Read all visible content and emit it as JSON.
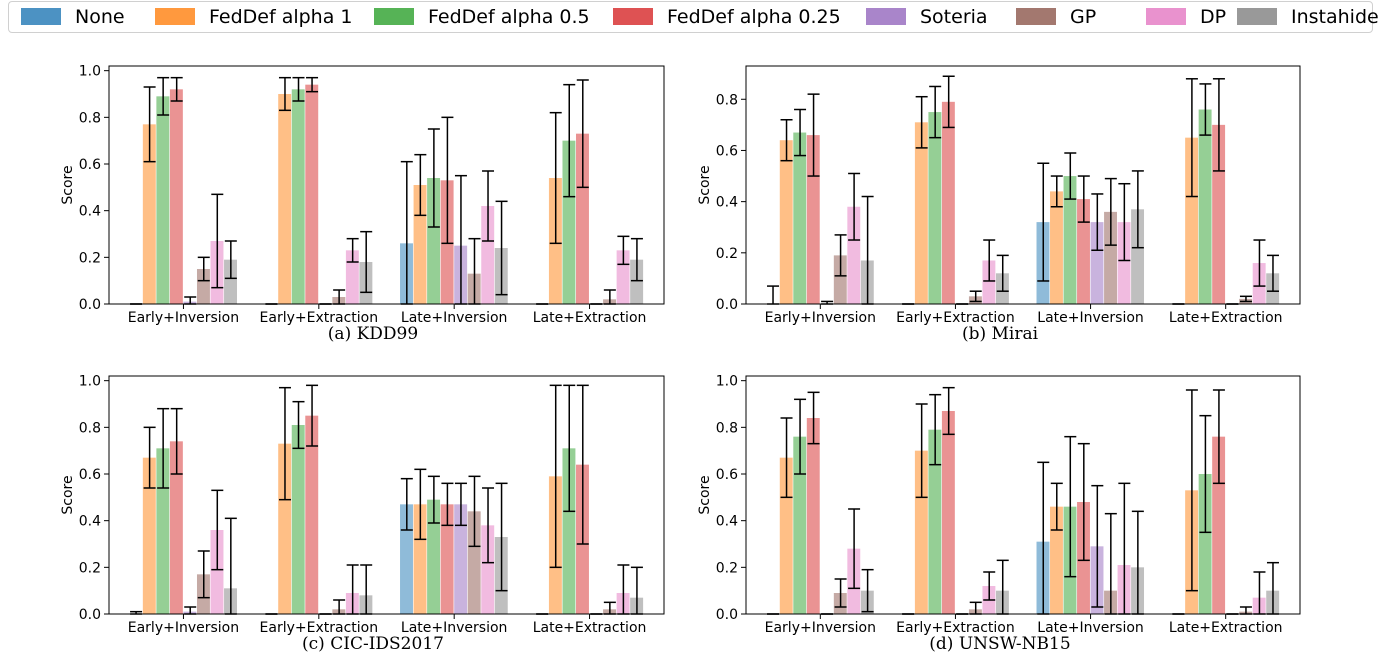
{
  "legend": [
    {
      "name": "None",
      "color": "#1f77b4"
    },
    {
      "name": "FedDef alpha 1",
      "color": "#ff7f0e"
    },
    {
      "name": "FedDef alpha 0.5",
      "color": "#2ca02c"
    },
    {
      "name": "FedDef alpha 0.25",
      "color": "#d62728"
    },
    {
      "name": "Soteria",
      "color": "#9467bd"
    },
    {
      "name": "GP",
      "color": "#8c564b"
    },
    {
      "name": "DP",
      "color": "#e377c2"
    },
    {
      "name": "Instahide",
      "color": "#7f7f7f"
    }
  ],
  "chart_data": [
    {
      "type": "bar",
      "caption": "(a) KDD99",
      "ylabel": "Score",
      "ylim": [
        0,
        1.02
      ],
      "yticks": [
        "0.0",
        "0.2",
        "0.4",
        "0.6",
        "0.8",
        "1.0"
      ],
      "categories": [
        "Early+Inversion",
        "Early+Extraction",
        "Late+Inversion",
        "Late+Extraction"
      ],
      "series": [
        {
          "name": "None",
          "values": [
            0.0,
            0.0,
            0.26,
            0.0
          ],
          "err": [
            0.0,
            0.0,
            0.35,
            0.0
          ]
        },
        {
          "name": "FedDef alpha 1",
          "values": [
            0.77,
            0.9,
            0.51,
            0.54
          ],
          "err": [
            0.16,
            0.07,
            0.13,
            0.28
          ]
        },
        {
          "name": "FedDef alpha 0.5",
          "values": [
            0.89,
            0.92,
            0.54,
            0.7
          ],
          "err": [
            0.08,
            0.05,
            0.21,
            0.24
          ]
        },
        {
          "name": "FedDef alpha 0.25",
          "values": [
            0.92,
            0.94,
            0.53,
            0.73
          ],
          "err": [
            0.05,
            0.03,
            0.27,
            0.23
          ]
        },
        {
          "name": "Soteria",
          "values": [
            0.01,
            0.0,
            0.25,
            0.0
          ],
          "err": [
            0.02,
            0.0,
            0.3,
            0.0
          ]
        },
        {
          "name": "GP",
          "values": [
            0.15,
            0.03,
            0.13,
            0.02
          ],
          "err": [
            0.05,
            0.03,
            0.15,
            0.04
          ]
        },
        {
          "name": "DP",
          "values": [
            0.27,
            0.23,
            0.42,
            0.23
          ],
          "err": [
            0.2,
            0.05,
            0.15,
            0.06
          ]
        },
        {
          "name": "Instahide",
          "values": [
            0.19,
            0.18,
            0.24,
            0.19
          ],
          "err": [
            0.08,
            0.13,
            0.2,
            0.09
          ]
        }
      ]
    },
    {
      "type": "bar",
      "caption": "(b) Mirai",
      "ylabel": "Score",
      "ylim": [
        0,
        0.93
      ],
      "yticks": [
        "0.0",
        "0.2",
        "0.4",
        "0.6",
        "0.8"
      ],
      "categories": [
        "Early+Inversion",
        "Early+Extraction",
        "Late+Inversion",
        "Late+Extraction"
      ],
      "series": [
        {
          "name": "None",
          "values": [
            0.0,
            0.0,
            0.32,
            0.0
          ],
          "err": [
            0.07,
            0.0,
            0.23,
            0.0
          ]
        },
        {
          "name": "FedDef alpha 1",
          "values": [
            0.64,
            0.71,
            0.44,
            0.65
          ],
          "err": [
            0.08,
            0.1,
            0.06,
            0.23
          ]
        },
        {
          "name": "FedDef alpha 0.5",
          "values": [
            0.67,
            0.75,
            0.5,
            0.76
          ],
          "err": [
            0.09,
            0.1,
            0.09,
            0.1
          ]
        },
        {
          "name": "FedDef alpha 0.25",
          "values": [
            0.66,
            0.79,
            0.41,
            0.7
          ],
          "err": [
            0.16,
            0.1,
            0.09,
            0.18
          ]
        },
        {
          "name": "Soteria",
          "values": [
            0.0,
            0.0,
            0.32,
            0.0
          ],
          "err": [
            0.01,
            0.0,
            0.11,
            0.0
          ]
        },
        {
          "name": "GP",
          "values": [
            0.19,
            0.03,
            0.36,
            0.02
          ],
          "err": [
            0.08,
            0.02,
            0.13,
            0.01
          ]
        },
        {
          "name": "DP",
          "values": [
            0.38,
            0.17,
            0.32,
            0.16
          ],
          "err": [
            0.13,
            0.08,
            0.15,
            0.09
          ]
        },
        {
          "name": "Instahide",
          "values": [
            0.17,
            0.12,
            0.37,
            0.12
          ],
          "err": [
            0.25,
            0.07,
            0.15,
            0.07
          ]
        }
      ]
    },
    {
      "type": "bar",
      "caption": "(c) CIC-IDS2017",
      "ylabel": "Score",
      "ylim": [
        0,
        1.02
      ],
      "yticks": [
        "0.0",
        "0.2",
        "0.4",
        "0.6",
        "0.8",
        "1.0"
      ],
      "categories": [
        "Early+Inversion",
        "Early+Extraction",
        "Late+Inversion",
        "Late+Extraction"
      ],
      "series": [
        {
          "name": "None",
          "values": [
            0.0,
            0.0,
            0.47,
            0.0
          ],
          "err": [
            0.01,
            0.0,
            0.11,
            0.0
          ]
        },
        {
          "name": "FedDef alpha 1",
          "values": [
            0.67,
            0.73,
            0.47,
            0.59
          ],
          "err": [
            0.13,
            0.24,
            0.15,
            0.39
          ]
        },
        {
          "name": "FedDef alpha 0.5",
          "values": [
            0.71,
            0.81,
            0.49,
            0.71
          ],
          "err": [
            0.17,
            0.1,
            0.1,
            0.27
          ]
        },
        {
          "name": "FedDef alpha 0.25",
          "values": [
            0.74,
            0.85,
            0.47,
            0.64
          ],
          "err": [
            0.14,
            0.13,
            0.09,
            0.34
          ]
        },
        {
          "name": "Soteria",
          "values": [
            0.01,
            0.0,
            0.47,
            0.0
          ],
          "err": [
            0.02,
            0.0,
            0.09,
            0.0
          ]
        },
        {
          "name": "GP",
          "values": [
            0.17,
            0.02,
            0.44,
            0.02
          ],
          "err": [
            0.1,
            0.04,
            0.15,
            0.03
          ]
        },
        {
          "name": "DP",
          "values": [
            0.36,
            0.09,
            0.38,
            0.09
          ],
          "err": [
            0.17,
            0.12,
            0.16,
            0.12
          ]
        },
        {
          "name": "Instahide",
          "values": [
            0.11,
            0.08,
            0.33,
            0.07
          ],
          "err": [
            0.3,
            0.13,
            0.23,
            0.13
          ]
        }
      ]
    },
    {
      "type": "bar",
      "caption": "(d) UNSW-NB15",
      "ylabel": "Score",
      "ylim": [
        0,
        1.02
      ],
      "yticks": [
        "0.0",
        "0.2",
        "0.4",
        "0.6",
        "0.8",
        "1.0"
      ],
      "categories": [
        "Early+Inversion",
        "Early+Extraction",
        "Late+Inversion",
        "Late+Extraction"
      ],
      "series": [
        {
          "name": "None",
          "values": [
            0.0,
            0.0,
            0.31,
            0.0
          ],
          "err": [
            0.0,
            0.0,
            0.34,
            0.0
          ]
        },
        {
          "name": "FedDef alpha 1",
          "values": [
            0.67,
            0.7,
            0.46,
            0.53
          ],
          "err": [
            0.17,
            0.2,
            0.1,
            0.43
          ]
        },
        {
          "name": "FedDef alpha 0.5",
          "values": [
            0.76,
            0.79,
            0.46,
            0.6
          ],
          "err": [
            0.16,
            0.15,
            0.3,
            0.25
          ]
        },
        {
          "name": "FedDef alpha 0.25",
          "values": [
            0.84,
            0.87,
            0.48,
            0.76
          ],
          "err": [
            0.11,
            0.1,
            0.25,
            0.2
          ]
        },
        {
          "name": "Soteria",
          "values": [
            0.0,
            0.0,
            0.29,
            0.0
          ],
          "err": [
            0.0,
            0.0,
            0.26,
            0.0
          ]
        },
        {
          "name": "GP",
          "values": [
            0.09,
            0.02,
            0.1,
            0.01
          ],
          "err": [
            0.06,
            0.03,
            0.33,
            0.02
          ]
        },
        {
          "name": "DP",
          "values": [
            0.28,
            0.12,
            0.21,
            0.07
          ],
          "err": [
            0.17,
            0.06,
            0.35,
            0.11
          ]
        },
        {
          "name": "Instahide",
          "values": [
            0.1,
            0.1,
            0.2,
            0.1
          ],
          "err": [
            0.09,
            0.13,
            0.24,
            0.12
          ]
        }
      ]
    }
  ]
}
